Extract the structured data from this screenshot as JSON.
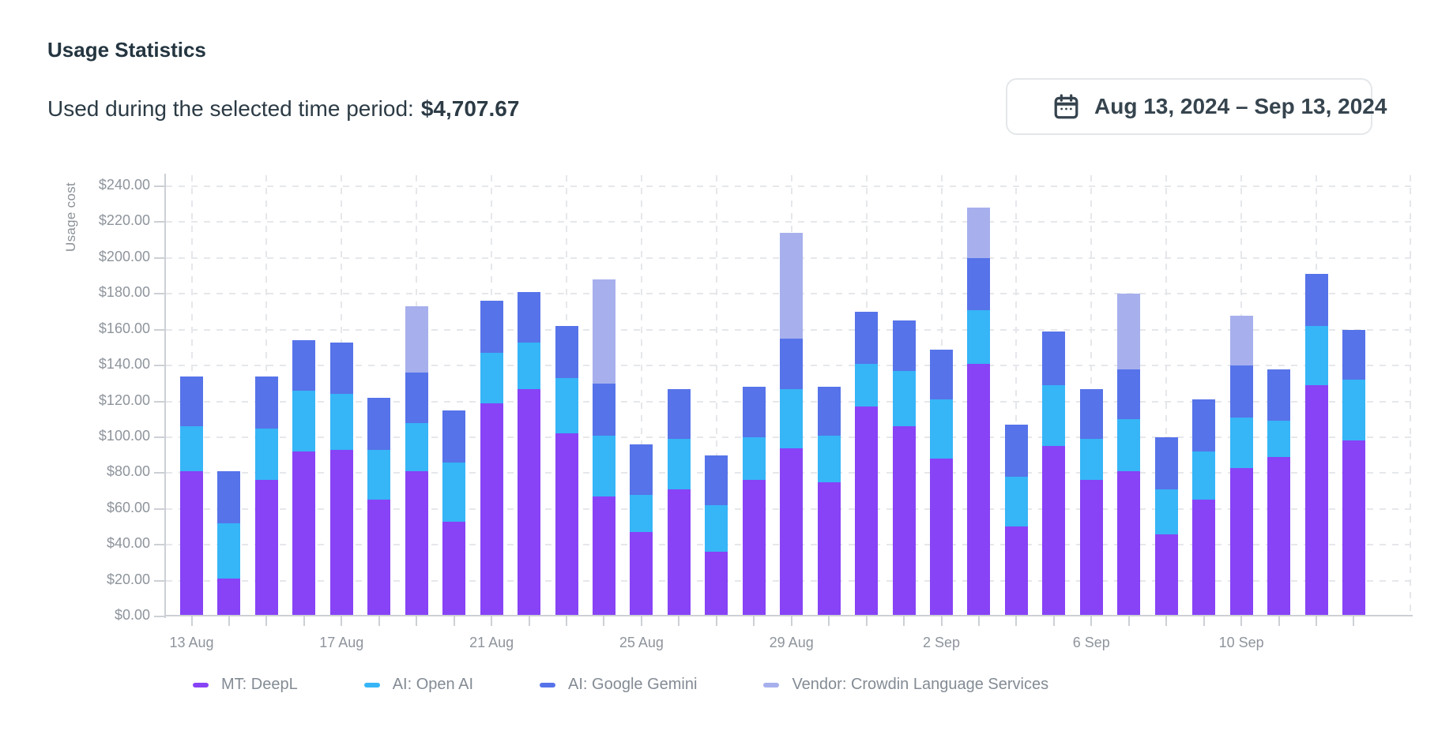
{
  "header": {
    "title": "Usage Statistics",
    "period_label": "Used during the selected time period:",
    "period_value": "$4,707.67"
  },
  "date_picker": {
    "range_label": "Aug 13, 2024 – Sep 13, 2024",
    "icon": "calendar-icon"
  },
  "colors": {
    "deepl": "#8743f5",
    "openai": "#36b5f7",
    "gemini": "#5673e9",
    "vendor": "#a7b0ed",
    "axis_line": "#ccd0d5",
    "grid_line": "#e5e7eb",
    "tick_text": "#8e949c",
    "legend_text": "#838b94",
    "dark_text": "#2c3b45"
  },
  "chart_data": {
    "type": "bar",
    "stacked": true,
    "title": "",
    "xlabel": "",
    "ylabel": "Usage cost",
    "ylim": [
      0,
      240
    ],
    "ytick_step": 20,
    "ytick_labels": [
      "$0.00",
      "$20.00",
      "$40.00",
      "$60.00",
      "$80.00",
      "$100.00",
      "$120.00",
      "$140.00",
      "$160.00",
      "$180.00",
      "$200.00",
      "$220.00",
      "$240.00"
    ],
    "grid": "dashed",
    "legend_position": "bottom",
    "categories": [
      "13 Aug",
      "14 Aug",
      "15 Aug",
      "16 Aug",
      "17 Aug",
      "18 Aug",
      "19 Aug",
      "20 Aug",
      "21 Aug",
      "22 Aug",
      "23 Aug",
      "24 Aug",
      "25 Aug",
      "26 Aug",
      "27 Aug",
      "28 Aug",
      "29 Aug",
      "30 Aug",
      "31 Aug",
      "1 Sep",
      "2 Sep",
      "3 Sep",
      "4 Sep",
      "5 Sep",
      "6 Sep",
      "7 Sep",
      "8 Sep",
      "9 Sep",
      "10 Sep",
      "11 Sep",
      "12 Sep",
      "13 Sep"
    ],
    "xticks": [
      {
        "index": 0,
        "label": "13 Aug"
      },
      {
        "index": 4,
        "label": "17 Aug"
      },
      {
        "index": 8,
        "label": "21 Aug"
      },
      {
        "index": 12,
        "label": "25 Aug"
      },
      {
        "index": 16,
        "label": "29 Aug"
      },
      {
        "index": 20,
        "label": "2 Sep"
      },
      {
        "index": 24,
        "label": "6 Sep"
      },
      {
        "index": 28,
        "label": "10 Sep"
      }
    ],
    "series": [
      {
        "name": "MT: DeepL",
        "color": "#8743f5",
        "values": [
          81,
          21,
          76,
          92,
          93,
          65,
          81,
          53,
          119,
          127,
          102,
          67,
          47,
          71,
          36,
          76,
          94,
          75,
          117,
          106,
          88,
          141,
          50,
          95,
          76,
          81,
          46,
          65,
          83,
          89,
          129,
          98
        ]
      },
      {
        "name": "AI: Open AI",
        "color": "#36b5f7",
        "values": [
          25,
          31,
          29,
          34,
          31,
          28,
          27,
          33,
          28,
          26,
          31,
          34,
          21,
          28,
          26,
          24,
          33,
          26,
          24,
          31,
          33,
          30,
          28,
          34,
          23,
          29,
          25,
          27,
          28,
          20,
          33,
          34
        ]
      },
      {
        "name": "AI: Google Gemini",
        "color": "#5673e9",
        "values": [
          28,
          29,
          29,
          28,
          29,
          29,
          28,
          29,
          29,
          28,
          29,
          29,
          28,
          28,
          28,
          28,
          28,
          27,
          29,
          28,
          28,
          29,
          29,
          30,
          28,
          28,
          29,
          29,
          29,
          29,
          29,
          28
        ]
      },
      {
        "name": "Vendor: Crowdin Language Services",
        "color": "#a7b0ed",
        "values": [
          0,
          0,
          0,
          0,
          0,
          0,
          37,
          0,
          0,
          0,
          0,
          58,
          0,
          0,
          0,
          0,
          59,
          0,
          0,
          0,
          0,
          28,
          0,
          0,
          0,
          42,
          0,
          0,
          28,
          0,
          0,
          0
        ]
      }
    ]
  }
}
